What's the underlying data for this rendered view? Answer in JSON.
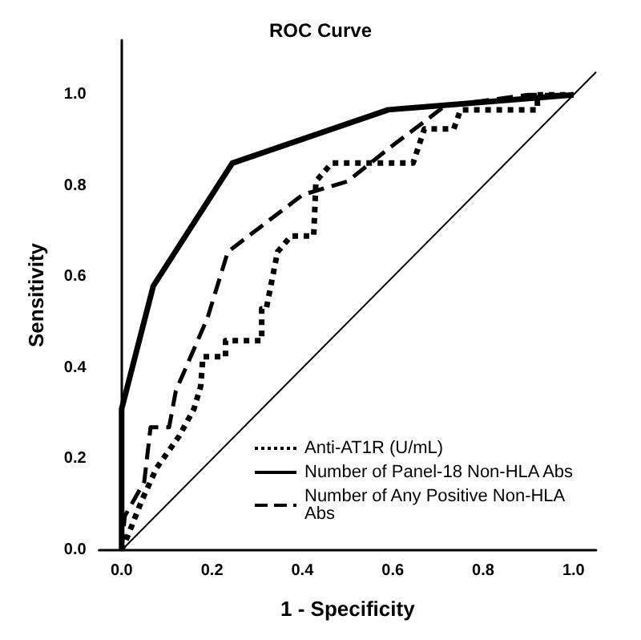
{
  "chart_data": {
    "type": "line",
    "title": "ROC Curve",
    "xlabel": "1 - Specificity",
    "ylabel": "Sensitivity",
    "xlim": [
      -0.05,
      1.05
    ],
    "ylim": [
      0,
      1.12
    ],
    "xticks": [
      {
        "value": 0,
        "label": "0.0"
      },
      {
        "value": 0.2,
        "label": "0.2"
      },
      {
        "value": 0.4,
        "label": "0.4"
      },
      {
        "value": 0.6,
        "label": "0.6"
      },
      {
        "value": 0.8,
        "label": "0.8"
      },
      {
        "value": 1,
        "label": "1.0"
      }
    ],
    "yticks": [
      {
        "value": 0,
        "label": "0.0"
      },
      {
        "value": 0.2,
        "label": "0.2"
      },
      {
        "value": 0.4,
        "label": "0.4"
      },
      {
        "value": 0.6,
        "label": "0.6"
      },
      {
        "value": 0.8,
        "label": "0.8"
      },
      {
        "value": 1,
        "label": "1.0"
      }
    ],
    "grid": false,
    "legend": "bottom right",
    "marker": "none",
    "series": [
      {
        "name": "Anti-AT1R (U/mL)",
        "color": "#000000",
        "line_style": "dotted",
        "x": [
          0,
          0.013,
          0.045,
          0.077,
          0.127,
          0.16,
          0.175,
          0.18,
          0.23,
          0.23,
          0.31,
          0.31,
          0.32,
          0.345,
          0.375,
          0.425,
          0.43,
          0.465,
          0.645,
          0.67,
          0.735,
          0.75,
          0.92,
          0.92,
          1
        ],
        "values": [
          0,
          0.03,
          0.11,
          0.18,
          0.25,
          0.31,
          0.36,
          0.425,
          0.425,
          0.46,
          0.46,
          0.53,
          0.53,
          0.655,
          0.69,
          0.69,
          0.81,
          0.85,
          0.85,
          0.925,
          0.925,
          0.967,
          0.967,
          1,
          1
        ]
      },
      {
        "name": "Number of Panel-18 Non-HLA Abs",
        "color": "#000000",
        "line_style": "solid",
        "x": [
          0,
          0,
          0.07,
          0.245,
          0.59,
          1
        ],
        "values": [
          0,
          0.31,
          0.58,
          0.85,
          0.967,
          1
        ]
      },
      {
        "name": "Number of Any Positive Non-HLA Abs",
        "color": "#000000",
        "line_style": "dashed",
        "x": [
          0,
          0.007,
          0.05,
          0.064,
          0.105,
          0.12,
          0.19,
          0.235,
          0.4,
          0.5,
          0.595,
          0.715,
          0.9,
          1
        ],
        "values": [
          0,
          0.075,
          0.15,
          0.27,
          0.27,
          0.35,
          0.51,
          0.655,
          0.78,
          0.81,
          0.885,
          0.975,
          1,
          1
        ]
      },
      {
        "color": "#000000",
        "line_style": "solid",
        "x": [
          0,
          1.05
        ],
        "values": [
          0,
          1.05
        ]
      }
    ]
  }
}
